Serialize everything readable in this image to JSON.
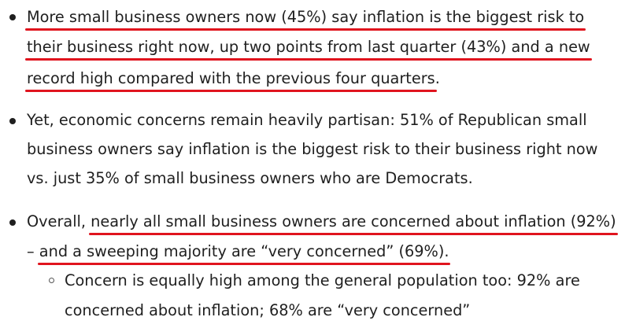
{
  "colors": {
    "text": "#1f1f1f",
    "highlight_underline": "#e0141e",
    "background": "#ffffff"
  },
  "bullets": [
    {
      "lines": [
        "More small business owners now (45%) say inflation is the biggest risk to",
        "their business right now, up two points from last quarter (43%) and a new",
        "record high compared with the previous four quarters"
      ],
      "trailing": "."
    },
    {
      "lines": [
        "Yet, economic concerns remain heavily partisan: 51% of Republican small",
        "business owners say inflation is the biggest risk to their business right now",
        "vs. just 35% of small business owners who are Democrats."
      ]
    },
    {
      "line1_prefix": "Overall, ",
      "line1_highlight": "nearly all small business owners are concerned about inflation (92%)",
      "line2_prefix": "– ",
      "line2_highlight": "and a sweeping majority are “very concerned” (69%).",
      "sub_bullet": {
        "lines": [
          "Concern is equally high among the general population too: 92% are",
          "concerned about inflation; 68% are “very concerned”"
        ]
      }
    }
  ]
}
